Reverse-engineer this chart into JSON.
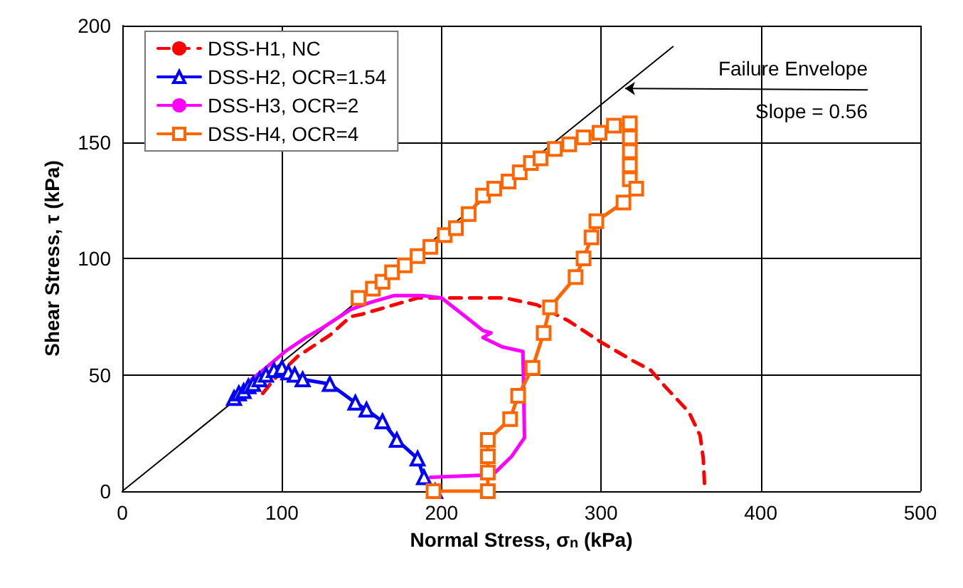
{
  "chart_data": {
    "type": "line",
    "xlabel": "Normal Stress, σ$_{n}$ (kPa)",
    "ylabel": "Shear Stress, τ (kPa)",
    "xlim": [
      0,
      500
    ],
    "xticks": [
      0,
      100,
      200,
      300,
      400,
      500
    ],
    "ylim": [
      0,
      200
    ],
    "yticks": [
      0,
      50,
      100,
      150,
      200
    ],
    "grid": true,
    "legend": "top left",
    "annotations": [
      {
        "text": "Failure Envelope\nSlope = 0.56",
        "x": 315,
        "y": 173
      }
    ],
    "series": [
      {
        "name": "DSS-H1, NC",
        "color": "#ff0000",
        "line_style": "dashed",
        "marker": "none",
        "x": [
          88,
          95,
          110,
          130,
          143,
          150,
          170,
          185,
          210,
          240,
          260,
          280,
          300,
          320,
          331,
          340,
          355,
          362,
          364,
          365
        ],
        "values": [
          42,
          48,
          58,
          67,
          75,
          76,
          80,
          83,
          83,
          83,
          80,
          73,
          64,
          56,
          52,
          45,
          34,
          24,
          14,
          0
        ]
      },
      {
        "name": "DSS-H2, OCR=1.54",
        "color": "#0000ff",
        "line_style": "solid",
        "marker": "triangle",
        "x": [
          70,
          73,
          76,
          79,
          82,
          86,
          90,
          95,
          100,
          104,
          108,
          113,
          130,
          146,
          153,
          163,
          172,
          185,
          189,
          196
        ],
        "values": [
          40,
          42,
          43,
          45,
          46,
          48,
          50,
          52,
          53,
          51,
          50,
          48,
          46,
          38,
          35,
          30,
          22,
          14,
          6,
          0
        ]
      },
      {
        "name": "DSS-H3, OCR=2",
        "color": "#ff00ff",
        "line_style": "solid",
        "marker": "none",
        "x": [
          81,
          90,
          102,
          115,
          125,
          143,
          155,
          170,
          188,
          200,
          215,
          226,
          231,
          226,
          238,
          251,
          252,
          244,
          232,
          193
        ],
        "values": [
          48,
          53,
          60,
          66,
          70,
          78,
          81,
          84,
          84,
          83,
          75,
          69,
          68,
          66,
          62,
          60,
          23,
          15,
          7,
          6
        ]
      },
      {
        "name": "DSS-H4, OCR=4",
        "color": "#ff6600",
        "line_style": "solid",
        "marker": "square",
        "x": [
          148,
          157,
          163,
          169,
          177,
          185,
          193,
          202,
          209,
          217,
          226,
          233,
          242,
          249,
          256,
          262,
          271,
          280,
          289,
          299,
          308,
          318,
          318,
          318,
          318,
          318,
          322,
          314,
          297,
          294,
          289,
          284,
          268,
          264,
          257,
          248,
          243,
          229,
          229,
          229,
          229,
          195
        ],
        "values": [
          83,
          87,
          90,
          94,
          97,
          101,
          105,
          110,
          113,
          119,
          127,
          130,
          133,
          137,
          141,
          143,
          147,
          149,
          152,
          154,
          157,
          158,
          152,
          146,
          140,
          134,
          130,
          124,
          116,
          109,
          100,
          92,
          79,
          68,
          53,
          41,
          31,
          22,
          15,
          8,
          0,
          0
        ]
      },
      {
        "color": "#000000",
        "line_style": "solid",
        "marker": "none",
        "x": [
          0,
          345
        ],
        "values": [
          0,
          191
        ]
      }
    ]
  }
}
